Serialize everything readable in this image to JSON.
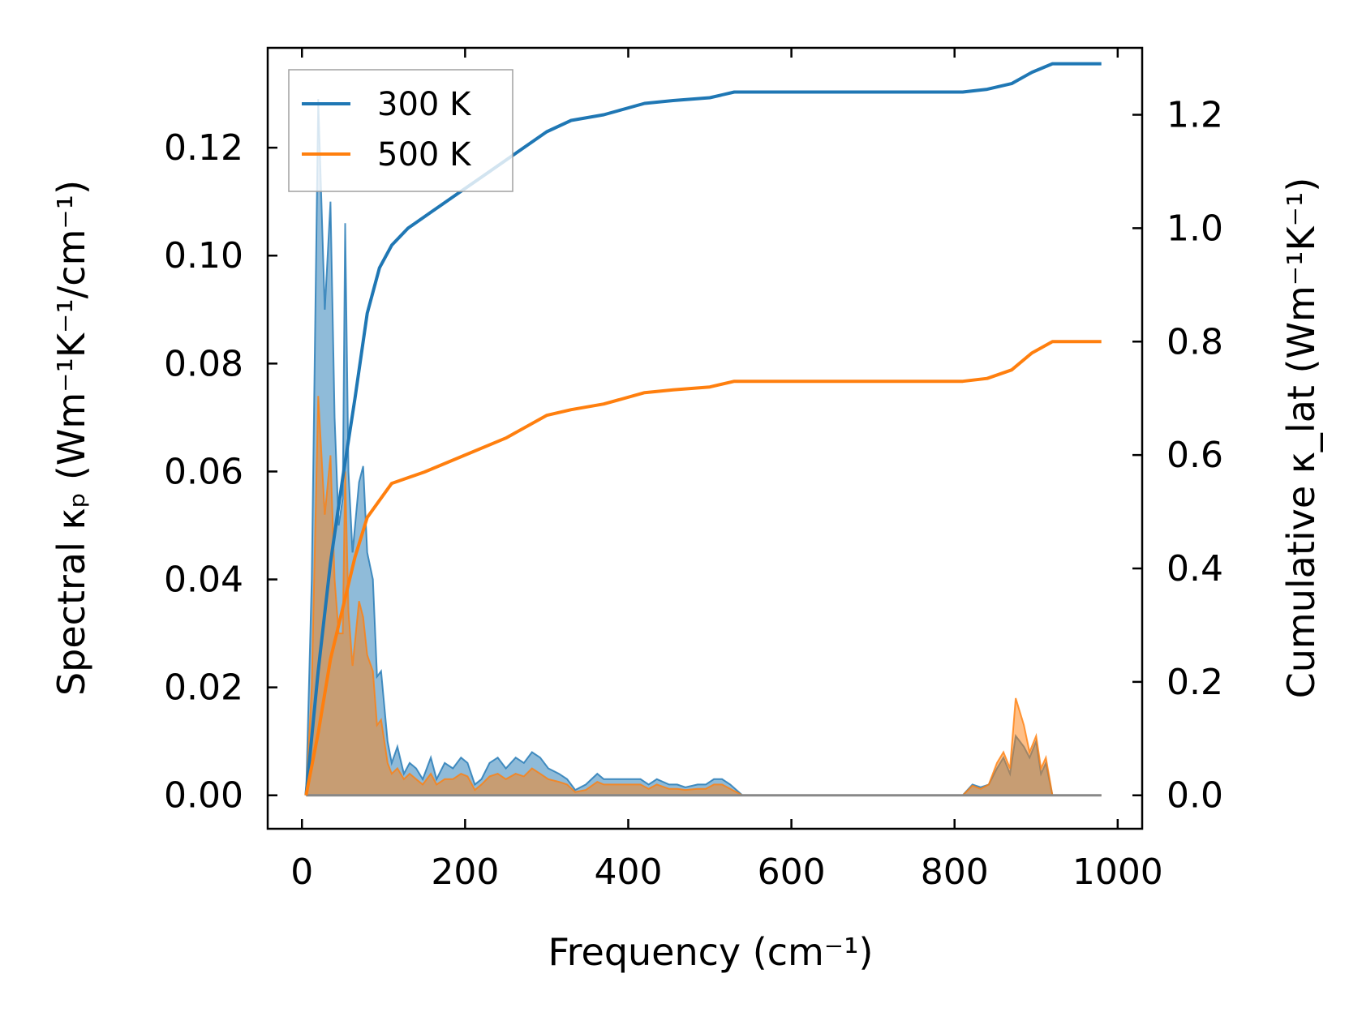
{
  "chart_data": {
    "type": "line",
    "xlabel": "Frequency (cm⁻¹)",
    "ylabel_left": "Spectral κₚ (Wm⁻¹K⁻¹/cm⁻¹)",
    "ylabel_right": "Cumulative κ_lat (Wm⁻¹K⁻¹)",
    "xlim": [
      -42,
      1030
    ],
    "ylim_left": [
      -0.0062,
      0.1385
    ],
    "ylim_right": [
      -0.059,
      1.318
    ],
    "x_ticks": [
      0,
      200,
      400,
      600,
      800,
      1000
    ],
    "x_tick_labels": [
      "0",
      "200",
      "400",
      "600",
      "800",
      "1000"
    ],
    "y_left_ticks": [
      0.0,
      0.02,
      0.04,
      0.06,
      0.08,
      0.1,
      0.12
    ],
    "y_left_tick_labels": [
      "0.00",
      "0.02",
      "0.04",
      "0.06",
      "0.08",
      "0.10",
      "0.12"
    ],
    "y_right_ticks": [
      0.0,
      0.2,
      0.4,
      0.6,
      0.8,
      1.0,
      1.2
    ],
    "y_right_tick_labels": [
      "0.0",
      "0.2",
      "0.4",
      "0.6",
      "0.8",
      "1.0",
      "1.2"
    ],
    "legend_position": "top-left",
    "grid": false,
    "series": [
      {
        "name": "300 K",
        "color": "#1f77b4",
        "spectral": [
          [
            5,
            0
          ],
          [
            12,
            0.04
          ],
          [
            20,
            0.129
          ],
          [
            28,
            0.09
          ],
          [
            35,
            0.11
          ],
          [
            40,
            0.07
          ],
          [
            45,
            0.05
          ],
          [
            50,
            0.055
          ],
          [
            53,
            0.106
          ],
          [
            57,
            0.06
          ],
          [
            62,
            0.045
          ],
          [
            70,
            0.058
          ],
          [
            75,
            0.061
          ],
          [
            80,
            0.045
          ],
          [
            87,
            0.04
          ],
          [
            92,
            0.022
          ],
          [
            97,
            0.023
          ],
          [
            105,
            0.01
          ],
          [
            110,
            0.006
          ],
          [
            117,
            0.009
          ],
          [
            125,
            0.004
          ],
          [
            132,
            0.006
          ],
          [
            140,
            0.005
          ],
          [
            148,
            0.003
          ],
          [
            158,
            0.007
          ],
          [
            165,
            0.003
          ],
          [
            175,
            0.006
          ],
          [
            185,
            0.005
          ],
          [
            195,
            0.007
          ],
          [
            203,
            0.006
          ],
          [
            212,
            0.002
          ],
          [
            220,
            0.003
          ],
          [
            230,
            0.006
          ],
          [
            240,
            0.007
          ],
          [
            250,
            0.005
          ],
          [
            262,
            0.007
          ],
          [
            272,
            0.006
          ],
          [
            282,
            0.008
          ],
          [
            292,
            0.007
          ],
          [
            302,
            0.005
          ],
          [
            315,
            0.004
          ],
          [
            325,
            0.003
          ],
          [
            335,
            0.001
          ],
          [
            348,
            0.002
          ],
          [
            362,
            0.004
          ],
          [
            370,
            0.003
          ],
          [
            385,
            0.003
          ],
          [
            400,
            0.003
          ],
          [
            415,
            0.003
          ],
          [
            425,
            0.002
          ],
          [
            435,
            0.003
          ],
          [
            450,
            0.002
          ],
          [
            460,
            0.002
          ],
          [
            470,
            0.0015
          ],
          [
            485,
            0.002
          ],
          [
            495,
            0.002
          ],
          [
            505,
            0.003
          ],
          [
            515,
            0.003
          ],
          [
            525,
            0.002
          ],
          [
            540,
            0
          ],
          [
            600,
            0
          ],
          [
            700,
            0
          ],
          [
            810,
            0
          ],
          [
            822,
            0.002
          ],
          [
            832,
            0.0015
          ],
          [
            842,
            0.002
          ],
          [
            852,
            0.005
          ],
          [
            860,
            0.007
          ],
          [
            868,
            0.004
          ],
          [
            875,
            0.011
          ],
          [
            885,
            0.009
          ],
          [
            892,
            0.007
          ],
          [
            900,
            0.01
          ],
          [
            906,
            0.004
          ],
          [
            912,
            0.006
          ],
          [
            920,
            0
          ],
          [
            980,
            0
          ]
        ],
        "cumulative": [
          [
            5,
            0
          ],
          [
            20,
            0.22
          ],
          [
            35,
            0.41
          ],
          [
            50,
            0.56
          ],
          [
            65,
            0.7
          ],
          [
            80,
            0.85
          ],
          [
            95,
            0.93
          ],
          [
            110,
            0.97
          ],
          [
            130,
            1.0
          ],
          [
            160,
            1.03
          ],
          [
            190,
            1.06
          ],
          [
            220,
            1.09
          ],
          [
            260,
            1.13
          ],
          [
            300,
            1.17
          ],
          [
            330,
            1.19
          ],
          [
            370,
            1.2
          ],
          [
            420,
            1.22
          ],
          [
            455,
            1.225
          ],
          [
            500,
            1.23
          ],
          [
            530,
            1.24
          ],
          [
            600,
            1.24
          ],
          [
            700,
            1.24
          ],
          [
            810,
            1.24
          ],
          [
            840,
            1.245
          ],
          [
            870,
            1.255
          ],
          [
            895,
            1.275
          ],
          [
            920,
            1.29
          ],
          [
            980,
            1.29
          ]
        ]
      },
      {
        "name": "500 K",
        "color": "#ff7f0e",
        "spectral": [
          [
            5,
            0
          ],
          [
            12,
            0.02
          ],
          [
            20,
            0.074
          ],
          [
            28,
            0.052
          ],
          [
            35,
            0.063
          ],
          [
            40,
            0.04
          ],
          [
            45,
            0.03
          ],
          [
            50,
            0.03
          ],
          [
            53,
            0.06
          ],
          [
            57,
            0.034
          ],
          [
            62,
            0.024
          ],
          [
            70,
            0.036
          ],
          [
            75,
            0.033
          ],
          [
            80,
            0.026
          ],
          [
            87,
            0.023
          ],
          [
            92,
            0.013
          ],
          [
            97,
            0.014
          ],
          [
            105,
            0.006
          ],
          [
            110,
            0.004
          ],
          [
            117,
            0.005
          ],
          [
            125,
            0.003
          ],
          [
            132,
            0.004
          ],
          [
            140,
            0.003
          ],
          [
            148,
            0.002
          ],
          [
            158,
            0.004
          ],
          [
            165,
            0.002
          ],
          [
            175,
            0.003
          ],
          [
            185,
            0.003
          ],
          [
            195,
            0.004
          ],
          [
            203,
            0.0035
          ],
          [
            212,
            0.001
          ],
          [
            220,
            0.002
          ],
          [
            230,
            0.0035
          ],
          [
            240,
            0.004
          ],
          [
            250,
            0.003
          ],
          [
            262,
            0.004
          ],
          [
            272,
            0.0035
          ],
          [
            282,
            0.005
          ],
          [
            292,
            0.004
          ],
          [
            302,
            0.003
          ],
          [
            315,
            0.0025
          ],
          [
            325,
            0.002
          ],
          [
            335,
            0.0006
          ],
          [
            348,
            0.001
          ],
          [
            362,
            0.0025
          ],
          [
            370,
            0.002
          ],
          [
            385,
            0.002
          ],
          [
            400,
            0.002
          ],
          [
            415,
            0.002
          ],
          [
            425,
            0.0012
          ],
          [
            435,
            0.002
          ],
          [
            450,
            0.0012
          ],
          [
            460,
            0.0012
          ],
          [
            470,
            0.001
          ],
          [
            485,
            0.0012
          ],
          [
            495,
            0.0012
          ],
          [
            505,
            0.002
          ],
          [
            515,
            0.002
          ],
          [
            525,
            0.0012
          ],
          [
            540,
            0
          ],
          [
            600,
            0
          ],
          [
            700,
            0
          ],
          [
            810,
            0
          ],
          [
            822,
            0.0018
          ],
          [
            832,
            0.0012
          ],
          [
            842,
            0.002
          ],
          [
            852,
            0.006
          ],
          [
            860,
            0.008
          ],
          [
            868,
            0.005
          ],
          [
            875,
            0.018
          ],
          [
            885,
            0.013
          ],
          [
            892,
            0.008
          ],
          [
            900,
            0.011
          ],
          [
            906,
            0.005
          ],
          [
            912,
            0.007
          ],
          [
            920,
            0
          ],
          [
            980,
            0
          ]
        ],
        "cumulative": [
          [
            5,
            0
          ],
          [
            20,
            0.11
          ],
          [
            35,
            0.24
          ],
          [
            50,
            0.33
          ],
          [
            65,
            0.42
          ],
          [
            80,
            0.49
          ],
          [
            95,
            0.52
          ],
          [
            110,
            0.55
          ],
          [
            150,
            0.57
          ],
          [
            200,
            0.6
          ],
          [
            250,
            0.63
          ],
          [
            300,
            0.67
          ],
          [
            330,
            0.68
          ],
          [
            370,
            0.69
          ],
          [
            420,
            0.71
          ],
          [
            455,
            0.715
          ],
          [
            500,
            0.72
          ],
          [
            530,
            0.73
          ],
          [
            600,
            0.73
          ],
          [
            700,
            0.73
          ],
          [
            810,
            0.73
          ],
          [
            840,
            0.735
          ],
          [
            870,
            0.75
          ],
          [
            895,
            0.78
          ],
          [
            920,
            0.8
          ],
          [
            980,
            0.8
          ]
        ]
      }
    ]
  }
}
